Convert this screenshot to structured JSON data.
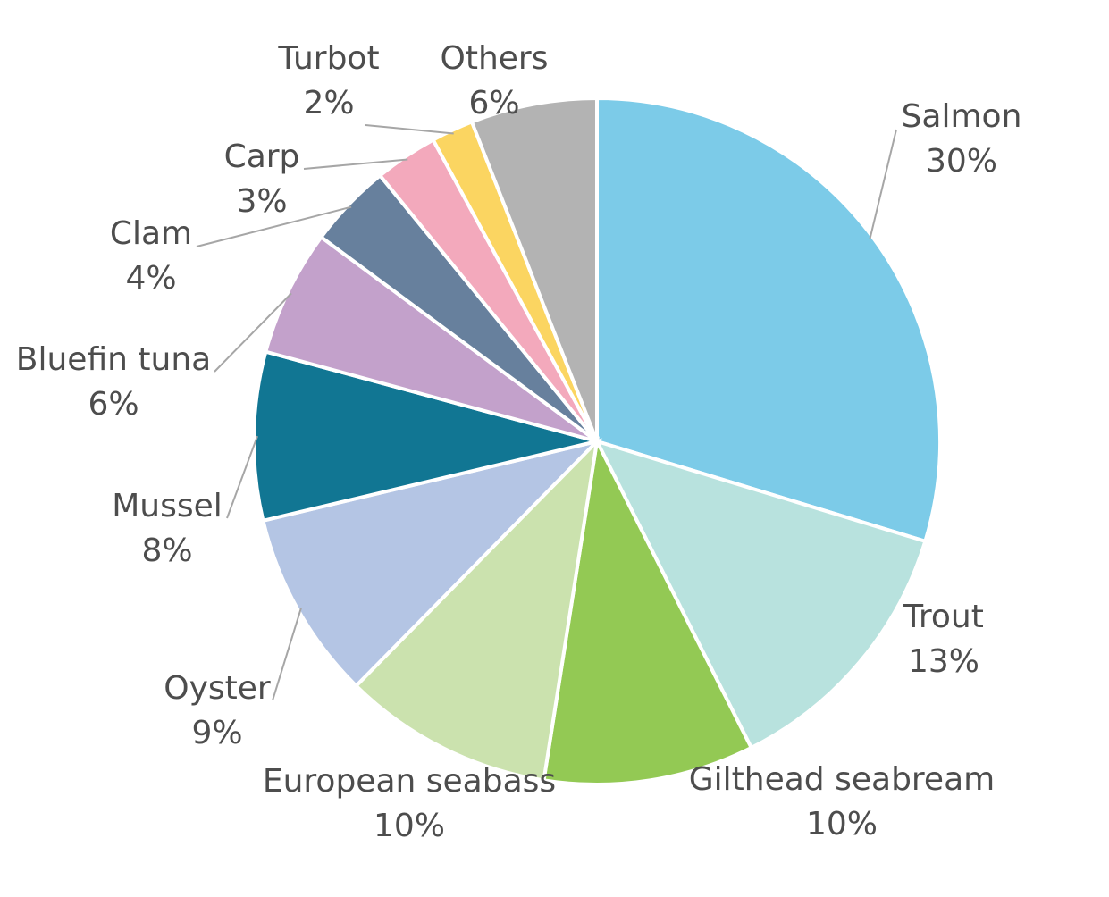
{
  "chart_data": {
    "type": "pie",
    "title": "",
    "start_angle_deg": 90,
    "direction": "clockwise",
    "slices": [
      {
        "label": "Salmon",
        "value": 30,
        "value_label": "30%",
        "color": "#7ccbe8"
      },
      {
        "label": "Trout",
        "value": 13,
        "value_label": "13%",
        "color": "#b8e2de"
      },
      {
        "label": "Gilthead seabream",
        "value": 10,
        "value_label": "10%",
        "color": "#93c954"
      },
      {
        "label": "European seabass",
        "value": 10,
        "value_label": "10%",
        "color": "#cbe2ae"
      },
      {
        "label": "Oyster",
        "value": 9,
        "value_label": "9%",
        "color": "#b4c5e4"
      },
      {
        "label": "Mussel",
        "value": 8,
        "value_label": "8%",
        "color": "#117693"
      },
      {
        "label": "Bluefin tuna",
        "value": 6,
        "value_label": "6%",
        "color": "#c3a1cb"
      },
      {
        "label": "Clam",
        "value": 4,
        "value_label": "4%",
        "color": "#67809d"
      },
      {
        "label": "Carp",
        "value": 3,
        "value_label": "3%",
        "color": "#f3a9bc"
      },
      {
        "label": "Turbot",
        "value": 2,
        "value_label": "2%",
        "color": "#fbd561"
      },
      {
        "label": "Others",
        "value": 6,
        "value_label": "6%",
        "color": "#b3b3b3"
      }
    ]
  }
}
